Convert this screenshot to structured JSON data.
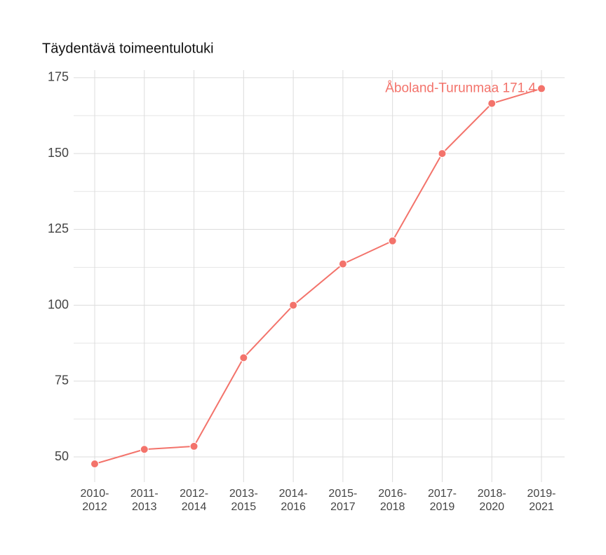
{
  "chart_data": {
    "type": "line",
    "title": "Täydentävä toimeentulotuki",
    "categories": [
      "2010-\n2012",
      "2011-\n2013",
      "2012-\n2014",
      "2013-\n2015",
      "2014-\n2016",
      "2015-\n2017",
      "2016-\n2018",
      "2017-\n2019",
      "2018-\n2020",
      "2019-\n2021"
    ],
    "values": [
      47.7,
      52.5,
      53.5,
      82.7,
      100,
      113.6,
      121.2,
      150,
      166.5,
      171.4
    ],
    "color": "#f3736b",
    "annotation": "Åboland-Turunmaa 171.4",
    "ylim": [
      41.7,
      177.5
    ],
    "yticks": [
      50,
      75,
      100,
      125,
      150,
      175
    ],
    "minor_yticks": [
      62.5,
      87.5,
      112.5,
      137.5,
      162.5
    ],
    "grid": true
  }
}
